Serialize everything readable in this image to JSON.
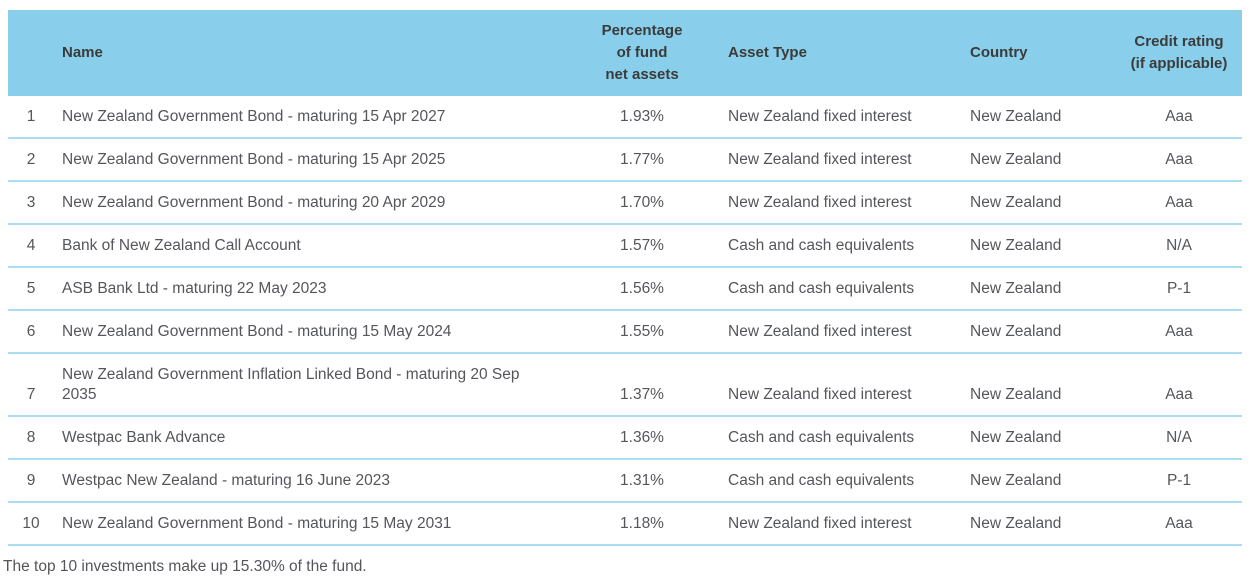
{
  "colors": {
    "header_bg": "#89CFEC",
    "row_divider": "#AADCF3",
    "header_text": "#3B3B3A",
    "body_text": "#54565A"
  },
  "table": {
    "columns": {
      "rank": "",
      "name": "Name",
      "percentage": "Percentage\nof fund\nnet assets",
      "asset_type": "Asset Type",
      "country": "Country",
      "credit_rating": "Credit rating\n(if applicable)"
    },
    "rows": [
      {
        "rank": "1",
        "name": "New Zealand Government Bond - maturing 15 Apr 2027",
        "percentage": "1.93%",
        "asset_type": "New Zealand fixed interest",
        "country": "New Zealand",
        "credit_rating": "Aaa"
      },
      {
        "rank": "2",
        "name": "New Zealand Government Bond - maturing 15 Apr 2025",
        "percentage": "1.77%",
        "asset_type": "New Zealand fixed interest",
        "country": "New Zealand",
        "credit_rating": "Aaa"
      },
      {
        "rank": "3",
        "name": "New Zealand Government Bond - maturing 20 Apr 2029",
        "percentage": "1.70%",
        "asset_type": "New Zealand fixed interest",
        "country": "New Zealand",
        "credit_rating": "Aaa"
      },
      {
        "rank": "4",
        "name": "Bank of New Zealand Call Account",
        "percentage": "1.57%",
        "asset_type": "Cash and cash equivalents",
        "country": "New Zealand",
        "credit_rating": "N/A"
      },
      {
        "rank": "5",
        "name": "ASB Bank Ltd - maturing 22 May 2023",
        "percentage": "1.56%",
        "asset_type": "Cash and cash equivalents",
        "country": "New Zealand",
        "credit_rating": "P-1"
      },
      {
        "rank": "6",
        "name": "New Zealand Government Bond - maturing 15 May 2024",
        "percentage": "1.55%",
        "asset_type": "New Zealand fixed interest",
        "country": "New Zealand",
        "credit_rating": "Aaa"
      },
      {
        "rank": "7",
        "name": "New Zealand Government Inflation Linked Bond - maturing 20 Sep 2035",
        "percentage": "1.37%",
        "asset_type": "New Zealand fixed interest",
        "country": "New Zealand",
        "credit_rating": "Aaa"
      },
      {
        "rank": "8",
        "name": "Westpac Bank Advance",
        "percentage": "1.36%",
        "asset_type": "Cash and cash equivalents",
        "country": "New Zealand",
        "credit_rating": "N/A"
      },
      {
        "rank": "9",
        "name": "Westpac New Zealand - maturing 16 June 2023",
        "percentage": "1.31%",
        "asset_type": "Cash and cash equivalents",
        "country": "New Zealand",
        "credit_rating": "P-1"
      },
      {
        "rank": "10",
        "name": "New Zealand Government Bond - maturing 15 May 2031",
        "percentage": "1.18%",
        "asset_type": "New Zealand fixed interest",
        "country": "New Zealand",
        "credit_rating": "Aaa"
      }
    ],
    "footnote": "The top 10 investments make up 15.30% of the fund."
  }
}
